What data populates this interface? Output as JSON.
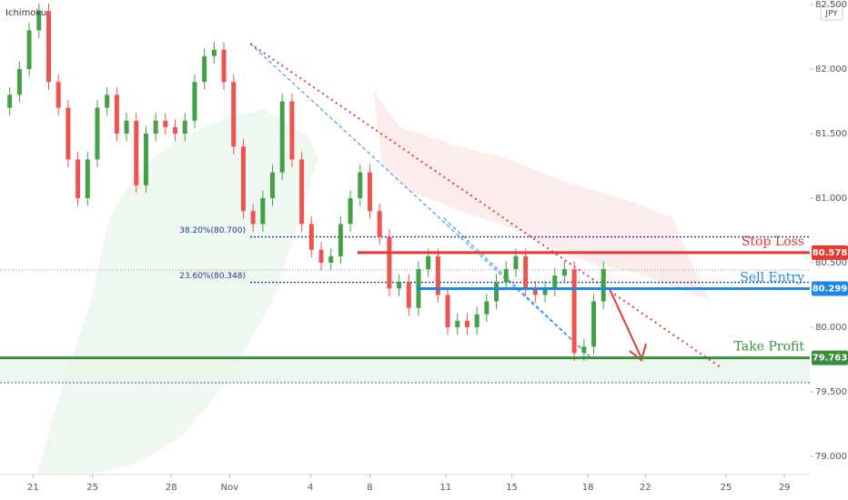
{
  "chart_data": {
    "type": "candlestick",
    "title": "Ichimoku",
    "currency": "JPY",
    "up_color": "#43a047",
    "down_color": "#ef5350",
    "x": [
      0,
      1,
      2,
      3,
      4,
      5,
      6,
      7,
      8,
      9,
      10,
      11,
      12,
      13,
      14,
      15,
      16,
      17,
      18,
      19,
      20,
      21,
      22,
      23,
      24,
      25,
      26,
      27,
      28,
      29,
      30,
      31,
      32,
      33,
      34,
      35,
      36,
      37,
      38,
      39,
      40,
      41,
      42,
      43,
      44,
      45,
      46,
      47,
      48,
      49,
      50,
      51,
      52,
      53,
      54,
      55,
      56,
      57,
      58,
      59,
      60,
      61
    ],
    "open": [
      81.7,
      81.8,
      82.0,
      82.3,
      82.45,
      81.9,
      81.7,
      81.3,
      81.0,
      81.3,
      81.7,
      81.8,
      81.5,
      81.6,
      81.1,
      81.5,
      81.6,
      81.55,
      81.5,
      81.6,
      81.9,
      82.1,
      82.15,
      81.9,
      81.4,
      80.9,
      80.8,
      81.0,
      81.2,
      81.75,
      81.3,
      80.8,
      80.6,
      80.5,
      80.55,
      80.8,
      81.0,
      81.2,
      80.9,
      80.7,
      80.3,
      80.35,
      80.15,
      80.45,
      80.55,
      80.25,
      80.0,
      80.05,
      80.0,
      80.1,
      80.2,
      80.35,
      80.45,
      80.55,
      80.3,
      80.25,
      80.3,
      80.4,
      80.45,
      79.8,
      79.85,
      80.2
    ],
    "high": [
      81.86,
      82.06,
      82.36,
      82.51,
      82.51,
      81.96,
      81.76,
      81.36,
      81.36,
      81.76,
      81.86,
      81.86,
      81.66,
      81.66,
      81.56,
      81.66,
      81.66,
      81.61,
      81.66,
      81.96,
      82.16,
      82.21,
      82.21,
      81.96,
      81.46,
      80.96,
      81.06,
      81.26,
      81.81,
      81.81,
      81.36,
      80.86,
      80.66,
      80.61,
      80.86,
      81.06,
      81.26,
      81.26,
      80.96,
      80.76,
      80.41,
      80.41,
      80.51,
      80.61,
      80.61,
      80.31,
      80.11,
      80.11,
      80.16,
      80.26,
      80.41,
      80.51,
      80.61,
      80.61,
      80.36,
      80.36,
      80.46,
      80.51,
      80.51,
      79.91,
      80.26,
      80.51
    ],
    "low": [
      81.64,
      81.74,
      81.94,
      82.24,
      81.84,
      81.64,
      81.24,
      80.94,
      80.94,
      81.24,
      81.64,
      81.44,
      81.44,
      81.04,
      81.04,
      81.44,
      81.49,
      81.44,
      81.44,
      81.54,
      81.84,
      82.04,
      81.84,
      81.34,
      80.84,
      80.74,
      80.74,
      80.94,
      81.14,
      81.24,
      80.74,
      80.54,
      80.44,
      80.44,
      80.49,
      80.74,
      80.94,
      80.84,
      80.64,
      80.24,
      80.24,
      80.09,
      80.09,
      80.39,
      80.19,
      79.94,
      79.94,
      79.94,
      79.94,
      80.04,
      80.14,
      80.29,
      80.39,
      80.24,
      80.19,
      80.19,
      80.24,
      80.34,
      79.74,
      79.74,
      79.79,
      80.14
    ],
    "close": [
      81.8,
      82.0,
      82.3,
      82.45,
      81.9,
      81.7,
      81.3,
      81.0,
      81.3,
      81.7,
      81.8,
      81.5,
      81.6,
      81.1,
      81.5,
      81.6,
      81.55,
      81.5,
      81.6,
      81.9,
      82.1,
      82.15,
      81.9,
      81.4,
      80.9,
      80.8,
      81.0,
      81.2,
      81.75,
      81.3,
      80.8,
      80.6,
      80.5,
      80.55,
      80.8,
      81.0,
      81.2,
      80.9,
      80.7,
      80.3,
      80.35,
      80.15,
      80.45,
      80.55,
      80.25,
      80.0,
      80.05,
      80.0,
      80.1,
      80.2,
      80.35,
      80.45,
      80.55,
      80.3,
      80.25,
      80.3,
      80.4,
      80.45,
      79.8,
      79.85,
      80.2,
      80.45
    ],
    "xlim": [
      -1,
      82.2
    ],
    "xticks": [
      {
        "value": 2.4,
        "label": "21"
      },
      {
        "value": 8.5,
        "label": "25"
      },
      {
        "value": 16.6,
        "label": "28"
      },
      {
        "value": 22.6,
        "label": "Nov"
      },
      {
        "value": 30.9,
        "label": "4"
      },
      {
        "value": 37.0,
        "label": "8"
      },
      {
        "value": 44.8,
        "label": "11"
      },
      {
        "value": 51.6,
        "label": "15"
      },
      {
        "value": 59.4,
        "label": "18"
      },
      {
        "value": 65.3,
        "label": "22"
      },
      {
        "value": 73.6,
        "label": "25"
      },
      {
        "value": 79.6,
        "label": "29"
      }
    ],
    "ylim": [
      78.873,
      82.535
    ],
    "yticks": [
      {
        "value": 79,
        "label": "79.000"
      },
      {
        "value": 79.5,
        "label": "79.500"
      },
      {
        "value": 80,
        "label": "80.000"
      },
      {
        "value": 80.5,
        "label": "80.500"
      },
      {
        "value": 81,
        "label": "81.000"
      },
      {
        "value": 81.5,
        "label": "81.500"
      },
      {
        "value": 82,
        "label": "82.000"
      },
      {
        "value": 82.5,
        "label": "82.500"
      }
    ],
    "levels": [
      {
        "name": "Stop Loss",
        "value": 80.578,
        "color": "#e53935"
      },
      {
        "name": "Sell Entry",
        "value": 80.299,
        "color": "#1e88e5"
      },
      {
        "name": "Take Profit",
        "value": 79.763,
        "color": "#388e3c"
      }
    ],
    "fib_levels": [
      {
        "value": 80.7,
        "label": "38.20%(80.700)"
      },
      {
        "value": 80.348,
        "label": "23.60%(80.348)"
      }
    ]
  }
}
